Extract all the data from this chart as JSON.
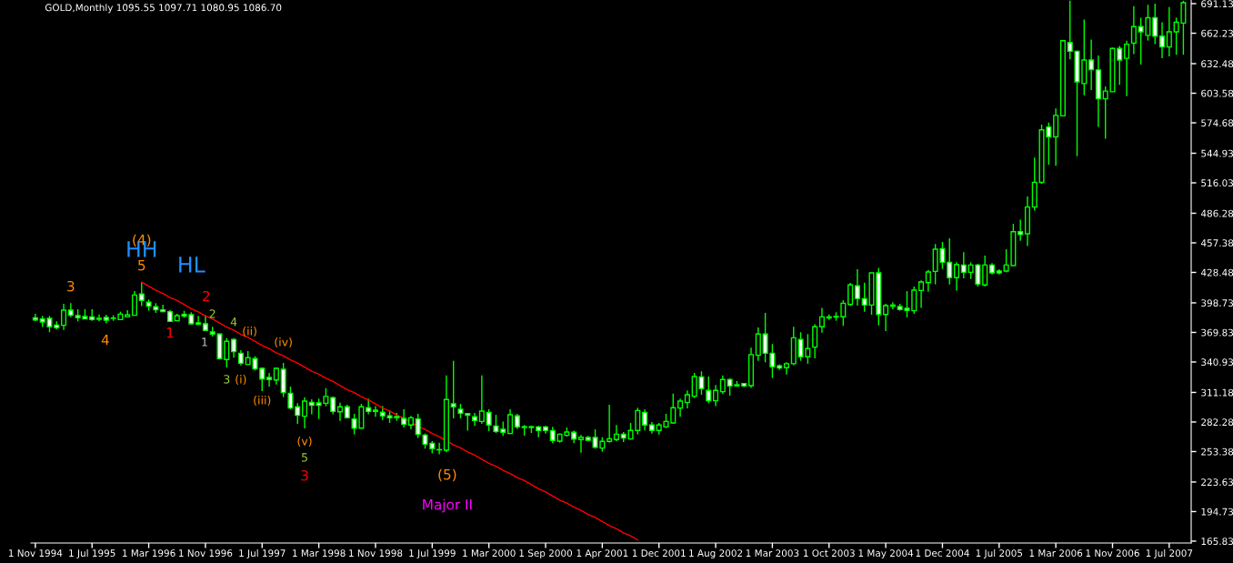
{
  "chart_data": {
    "type": "candlestick",
    "title": "GOLD,Monthly 1095.55 1097.71 1080.95 1086.70",
    "color": "#00ff00",
    "categories": [
      "1 Nov 1994",
      null,
      null,
      null,
      null,
      null,
      null,
      null,
      "1 Jul 1995",
      null,
      null,
      null,
      null,
      null,
      null,
      null,
      "1 Mar 1996",
      null,
      null,
      null,
      null,
      null,
      null,
      null,
      "1 Nov 1996",
      null,
      null,
      null,
      null,
      null,
      null,
      null,
      "1 Jul 1997",
      null,
      null,
      null,
      null,
      null,
      null,
      null,
      "1 Mar 1998",
      null,
      null,
      null,
      null,
      null,
      null,
      null,
      "1 Nov 1998",
      null,
      null,
      null,
      null,
      null,
      null,
      null,
      "1 Jul 1999",
      null,
      null,
      null,
      null,
      null,
      null,
      null,
      "1 Mar 2000",
      null,
      null,
      null,
      null,
      null,
      null,
      null,
      "1 Sep 2000",
      null,
      null,
      null,
      null,
      null,
      null,
      null,
      "1 Apr 2001",
      null,
      null,
      null,
      null,
      null,
      null,
      null,
      "1 Dec 2001",
      null,
      null,
      null,
      null,
      null,
      null,
      null,
      "1 Aug 2002",
      null,
      null,
      null,
      null,
      null,
      null,
      null,
      "1 Mar 2003",
      null,
      null,
      null,
      null,
      null,
      null,
      null,
      "1 Oct 2003",
      null,
      null,
      null,
      null,
      null,
      null,
      null,
      "1 May 2004",
      null,
      null,
      null,
      null,
      null,
      null,
      null,
      "1 Dec 2004",
      null,
      null,
      null,
      null,
      null,
      null,
      null,
      "1 Jul 2005",
      null,
      null,
      null,
      null,
      null,
      null,
      null,
      "1 Mar 2006",
      null,
      null,
      null,
      null,
      null,
      null,
      null,
      "1 Nov 2006",
      null,
      null,
      null,
      null,
      null,
      null,
      null,
      "1 Jul 2007",
      null,
      null
    ],
    "ohlc": [
      [
        384,
        388,
        381,
        382
      ],
      [
        383,
        386,
        375,
        380
      ],
      [
        383.6,
        386,
        370,
        375.3
      ],
      [
        377,
        380.6,
        373,
        374.5
      ],
      [
        376.8,
        397.8,
        372.3,
        391.6
      ],
      [
        391.6,
        398.4,
        384.8,
        386.6
      ],
      [
        386.3,
        392.5,
        380.6,
        384.2
      ],
      [
        385.4,
        392.5,
        382.7,
        383
      ],
      [
        385,
        392.5,
        381.2,
        382.4
      ],
      [
        383.6,
        387.4,
        380.6,
        382.7
      ],
      [
        384.5,
        387.1,
        378.8,
        381.8
      ],
      [
        383.9,
        386.6,
        381.2,
        383.6
      ],
      [
        382.4,
        390.1,
        382.1,
        387.7
      ],
      [
        385,
        391.6,
        384.5,
        386.9
      ],
      [
        386.6,
        410.3,
        386.6,
        406.4
      ],
      [
        407.3,
        418.5,
        395.5,
        401.1
      ],
      [
        399.3,
        402,
        391,
        395.5
      ],
      [
        394.9,
        398.4,
        388.9,
        391.9
      ],
      [
        391.9,
        396.9,
        389.5,
        390.1
      ],
      [
        390.1,
        391.9,
        380,
        380.6
      ],
      [
        381.2,
        388,
        380.6,
        386.3
      ],
      [
        387.4,
        391,
        384.2,
        385.7
      ],
      [
        387.1,
        389.5,
        377.7,
        378.3
      ],
      [
        379.1,
        386,
        377.1,
        377.7
      ],
      [
        378.3,
        386.6,
        371.2,
        371.8
      ],
      [
        370.3,
        375.3,
        365.8,
        368.2
      ],
      [
        368.2,
        368.8,
        343.3,
        344.2
      ],
      [
        343.3,
        364.3,
        335.6,
        361.1
      ],
      [
        362.9,
        364.3,
        345.1,
        351
      ],
      [
        349.5,
        352.5,
        337.6,
        339.7
      ],
      [
        338.6,
        351.6,
        338.6,
        345.1
      ],
      [
        344.2,
        346.6,
        332.6,
        334.1
      ],
      [
        334.7,
        335.6,
        312.5,
        324.3
      ],
      [
        325.8,
        330.3,
        316.9,
        323.8
      ],
      [
        323.4,
        335.6,
        319,
        334.7
      ],
      [
        333.8,
        340,
        306.6,
        311
      ],
      [
        310.4,
        316.9,
        294.7,
        295.9
      ],
      [
        297.1,
        300.6,
        280.5,
        288.8
      ],
      [
        287.9,
        306.5,
        276,
        302.7
      ],
      [
        301.5,
        304.5,
        289.7,
        298.6
      ],
      [
        300.9,
        305.1,
        285.2,
        298.6
      ],
      [
        300.6,
        315.4,
        297.7,
        307.2
      ],
      [
        306,
        307.2,
        289.7,
        292.6
      ],
      [
        292.3,
        301.2,
        283.4,
        297.1
      ],
      [
        297.1,
        299.2,
        285.8,
        286.4
      ],
      [
        285.2,
        290.3,
        270.1,
        276.1
      ],
      [
        276.3,
        300,
        276.3,
        297.1
      ],
      [
        296.2,
        305.1,
        289.7,
        292.6
      ],
      [
        293.8,
        297.7,
        287.3,
        292.6
      ],
      [
        291.8,
        297.7,
        284.3,
        288.2
      ],
      [
        288.2,
        293.2,
        281.4,
        286.4
      ],
      [
        287.6,
        291.2,
        283.4,
        286.4
      ],
      [
        285.8,
        294.7,
        276.9,
        279.9
      ],
      [
        279.4,
        288.2,
        275.4,
        286.4
      ],
      [
        285.2,
        290.3,
        266.6,
        270.1
      ],
      [
        269.5,
        271,
        256.2,
        260.6
      ],
      [
        261.5,
        263.6,
        251.7,
        256.2
      ],
      [
        255.3,
        262.1,
        250.8,
        255
      ],
      [
        254.7,
        327.9,
        252.6,
        304.2
      ],
      [
        300,
        342.1,
        285.8,
        297.1
      ],
      [
        294.7,
        300,
        285.8,
        290.8
      ],
      [
        290.5,
        291.1,
        273.9,
        288.8
      ],
      [
        287.3,
        291.1,
        278.4,
        283.7
      ],
      [
        282.8,
        327.9,
        280.5,
        292.9
      ],
      [
        291.7,
        294.7,
        273.3,
        279.3
      ],
      [
        278.4,
        289.3,
        271.6,
        273
      ],
      [
        275.1,
        282.8,
        268.6,
        272.2
      ],
      [
        271,
        294.7,
        270.4,
        289.3
      ],
      [
        288.2,
        290.2,
        275.4,
        277.5
      ],
      [
        277.7,
        279.3,
        268.9,
        276.9
      ],
      [
        277.7,
        278.7,
        271.6,
        276.9
      ],
      [
        277.5,
        278.4,
        267.4,
        273.9
      ],
      [
        277.5,
        278.4,
        271,
        273.9
      ],
      [
        273.9,
        277.5,
        261.5,
        264.2
      ],
      [
        263.6,
        271,
        262.1,
        270.4
      ],
      [
        269.2,
        276.9,
        268,
        272.5
      ],
      [
        272.2,
        273.9,
        261.5,
        265.6
      ],
      [
        265.1,
        269.5,
        252.3,
        267.4
      ],
      [
        267.1,
        268.6,
        263.3,
        264.5
      ],
      [
        267.1,
        275.1,
        256.2,
        257.6
      ],
      [
        256.8,
        267.4,
        253.2,
        263.3
      ],
      [
        263.3,
        299.1,
        262.1,
        265.9
      ],
      [
        265.1,
        279.3,
        263.6,
        270.4
      ],
      [
        270.4,
        272.5,
        262.7,
        266.6
      ],
      [
        265.7,
        281.4,
        265.1,
        274
      ],
      [
        274,
        296.2,
        270.1,
        293.5
      ],
      [
        291.7,
        294.7,
        274,
        279.3
      ],
      [
        279.3,
        282.3,
        271,
        274
      ],
      [
        274,
        281.4,
        270.1,
        279.3
      ],
      [
        277.5,
        290.3,
        276.3,
        282.8
      ],
      [
        281.4,
        310.1,
        280.8,
        296.2
      ],
      [
        295.9,
        305.1,
        287.3,
        302.7
      ],
      [
        301.2,
        313.1,
        295.6,
        308.9
      ],
      [
        307.5,
        330.3,
        305.7,
        326.7
      ],
      [
        326.4,
        331.8,
        308.9,
        314.9
      ],
      [
        313.1,
        326.7,
        300.6,
        303
      ],
      [
        303,
        318.4,
        297.7,
        313.1
      ],
      [
        311.9,
        327.9,
        309.5,
        323.8
      ],
      [
        323.8,
        325,
        308,
        317.5
      ],
      [
        318.7,
        322.3,
        316.9,
        317.5
      ],
      [
        319.9,
        320.5,
        316.4,
        317.5
      ],
      [
        317.8,
        354.9,
        315.5,
        348.1
      ],
      [
        347.5,
        374.7,
        342.1,
        368.2
      ],
      [
        368.2,
        388.9,
        340.6,
        349.5
      ],
      [
        349.5,
        358.4,
        325.2,
        336.2
      ],
      [
        337.1,
        338.6,
        333.2,
        335
      ],
      [
        335.3,
        340.6,
        328.8,
        339.2
      ],
      [
        339.2,
        375.3,
        337.7,
        364.6
      ],
      [
        362.9,
        370,
        342.1,
        346
      ],
      [
        346,
        368.2,
        339.2,
        354
      ],
      [
        355.5,
        377.7,
        344.5,
        375.3
      ],
      [
        375.3,
        393.9,
        369.6,
        385
      ],
      [
        384,
        387.4,
        382.1,
        385
      ],
      [
        385.4,
        389.5,
        381.2,
        384.8
      ],
      [
        385.1,
        401.3,
        376.2,
        398.4
      ],
      [
        397.2,
        418.2,
        396,
        416.2
      ],
      [
        415.3,
        431.6,
        396,
        402.8
      ],
      [
        402.8,
        418.5,
        390.1,
        396.6
      ],
      [
        396.6,
        428,
        387.1,
        428
      ],
      [
        428,
        433,
        376.8,
        387.4
      ],
      [
        387.4,
        397.8,
        371.1,
        396
      ],
      [
        395.4,
        399.3,
        392.5,
        396.6
      ],
      [
        395.1,
        397.8,
        391,
        392.2
      ],
      [
        393.3,
        410.2,
        384.5,
        391.3
      ],
      [
        391,
        414.7,
        388,
        411.1
      ],
      [
        410.8,
        420.6,
        393.9,
        419.1
      ],
      [
        418.5,
        431,
        409.6,
        428.9
      ],
      [
        429.5,
        456.2,
        416.8,
        451.1
      ],
      [
        451.7,
        458.2,
        431.9,
        438.4
      ],
      [
        438.4,
        461.8,
        416.8,
        423.3
      ],
      [
        423.3,
        438.4,
        410.8,
        436
      ],
      [
        435.7,
        448.2,
        422.7,
        428.6
      ],
      [
        428.6,
        438.4,
        422.1,
        435.7
      ],
      [
        435.7,
        436.9,
        414.7,
        417
      ],
      [
        416.2,
        444.9,
        414.7,
        435.7
      ],
      [
        435.7,
        437.5,
        426.5,
        428
      ],
      [
        429.8,
        431.6,
        426.5,
        428
      ],
      [
        429.8,
        451.1,
        428.6,
        435.7
      ],
      [
        435.2,
        475.9,
        435.2,
        468.3
      ],
      [
        468.3,
        480,
        459.4,
        465.5
      ],
      [
        466.2,
        502.7,
        454.2,
        492.4
      ],
      [
        492.4,
        540.6,
        489,
        516.5
      ],
      [
        516.5,
        573,
        515,
        567.8
      ],
      [
        570.6,
        575,
        533.7,
        560.9
      ],
      [
        560.9,
        588.8,
        532.6,
        581.9
      ],
      [
        581.5,
        655.6,
        580.9,
        654.9
      ],
      [
        653.2,
        694,
        636.6,
        644.6
      ],
      [
        644.6,
        645.3,
        542,
        614.7
      ],
      [
        613,
        675.6,
        601.6,
        636
      ],
      [
        636,
        656,
        606.8,
        626.7
      ],
      [
        626.4,
        640.5,
        570.6,
        598.1
      ],
      [
        598.1,
        610.2,
        559.2,
        605.7
      ],
      [
        605,
        648.1,
        605,
        647.4
      ],
      [
        647.4,
        649.8,
        611.9,
        636
      ],
      [
        637.7,
        655,
        600.6,
        651.5
      ],
      [
        652.6,
        688.7,
        641.9,
        668.7
      ],
      [
        668.7,
        677.4,
        631.6,
        663.6
      ],
      [
        660.1,
        690,
        655,
        677.4
      ],
      [
        677.4,
        691.1,
        651.5,
        659.4
      ],
      [
        659.4,
        672.9,
        637.7,
        648.8
      ],
      [
        648.8,
        687.7,
        639.5,
        663.6
      ],
      [
        663.6,
        677.4,
        641.2,
        672.9
      ],
      [
        672.1,
        694,
        641.2,
        692
      ]
    ],
    "series": [
      {
        "type": "line",
        "color": "#ff0000",
        "values": [
          null,
          null,
          null,
          null,
          null,
          null,
          null,
          null,
          null,
          null,
          null,
          null,
          null,
          null,
          null,
          419,
          415,
          411,
          408,
          404,
          401,
          397,
          393,
          390,
          386,
          383,
          379,
          375,
          372,
          368,
          365,
          361,
          357,
          354,
          350,
          347,
          343,
          340,
          336,
          332,
          329,
          325,
          322,
          318,
          314,
          311,
          307,
          304,
          300,
          296,
          293,
          289,
          286,
          282,
          278,
          275,
          271,
          268,
          264,
          260,
          257,
          253,
          250,
          246,
          242,
          239,
          235,
          232,
          228,
          225,
          221,
          217,
          214,
          210,
          206,
          203,
          199,
          196,
          192,
          189,
          185,
          181,
          178,
          174,
          171,
          167,
          null,
          null,
          null,
          null,
          null,
          null,
          null,
          null,
          null,
          null,
          null,
          null,
          null,
          null,
          null,
          null,
          null,
          null,
          null,
          null,
          null,
          null,
          null,
          null,
          null,
          null,
          null,
          null,
          null,
          null,
          null,
          null,
          null,
          null,
          null,
          null,
          null,
          null,
          null,
          null,
          null,
          null,
          null,
          null,
          null,
          null,
          null,
          null,
          null,
          null,
          null,
          null,
          null,
          null,
          null,
          null,
          null,
          null,
          null,
          null,
          null,
          null,
          null,
          null,
          null,
          null,
          null,
          null,
          null,
          null,
          null,
          null,
          null,
          null,
          null,
          null,
          null
        ]
      }
    ],
    "ylim": [
      164.0,
      694.7
    ],
    "yticks": [
      165.83,
      194.73,
      223.63,
      253.38,
      282.28,
      311.18,
      340.93,
      369.83,
      398.73,
      428.48,
      457.38,
      486.28,
      516.03,
      544.93,
      574.68,
      603.58,
      632.48,
      662.23,
      691.13
    ],
    "grid": false,
    "annotations": [
      "(4)",
      "HH",
      "5",
      "HL",
      "3",
      "4",
      "2",
      "1",
      "2",
      "4",
      "1",
      "(ii)",
      "(iv)",
      "3",
      "(i)",
      "(iii)",
      "(v)",
      "5",
      "3",
      "(5)",
      "Major II"
    ]
  }
}
